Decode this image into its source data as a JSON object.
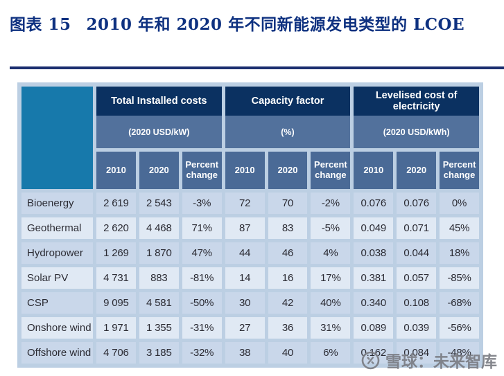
{
  "title": {
    "figure_label": "图表 15",
    "text": "2010 年和 2020 年不同新能源发电类型的 LCOE"
  },
  "watermark": {
    "text": "雪球：未来智库"
  },
  "colors": {
    "title_navy": "#0E3180",
    "rule_navy": "#1B2E6F",
    "header_navy": "#0B3161",
    "unit_band_blue": "#52719C",
    "subheader_blue": "#4A6A96",
    "corner_teal": "#1779AB",
    "table_grout": "#BCCFE3",
    "row_odd": "#C9D7EA",
    "row_even": "#E0E9F4"
  },
  "chart_data": {
    "type": "table",
    "title": "图表 15 2010 年和 2020 年不同新能源发电类型的 LCOE",
    "column_groups": [
      {
        "title": "Total Installed costs",
        "unit": "(2020 USD/kW)"
      },
      {
        "title": "Capacity factor",
        "unit": "(%)"
      },
      {
        "title": "Levelised cost of electricity",
        "unit": "(2020 USD/kWh)"
      }
    ],
    "sub_headers": [
      "2010",
      "2020",
      "Percent change"
    ],
    "rows": [
      {
        "name": "Bioenergy",
        "values": [
          "2 619",
          "2 543",
          "-3%",
          "72",
          "70",
          "-2%",
          "0.076",
          "0.076",
          "0%"
        ]
      },
      {
        "name": "Geothermal",
        "values": [
          "2 620",
          "4 468",
          "71%",
          "87",
          "83",
          "-5%",
          "0.049",
          "0.071",
          "45%"
        ]
      },
      {
        "name": "Hydropower",
        "values": [
          "1 269",
          "1 870",
          "47%",
          "44",
          "46",
          "4%",
          "0.038",
          "0.044",
          "18%"
        ]
      },
      {
        "name": "Solar PV",
        "values": [
          "4 731",
          "883",
          "-81%",
          "14",
          "16",
          "17%",
          "0.381",
          "0.057",
          "-85%"
        ]
      },
      {
        "name": "CSP",
        "values": [
          "9 095",
          "4 581",
          "-50%",
          "30",
          "42",
          "40%",
          "0.340",
          "0.108",
          "-68%"
        ]
      },
      {
        "name": "Onshore wind",
        "values": [
          "1 971",
          "1 355",
          "-31%",
          "27",
          "36",
          "31%",
          "0.089",
          "0.039",
          "-56%"
        ]
      },
      {
        "name": "Offshore wind",
        "values": [
          "4 706",
          "3 185",
          "-32%",
          "38",
          "40",
          "6%",
          "0.162",
          "0.084",
          "-48%"
        ]
      }
    ]
  }
}
